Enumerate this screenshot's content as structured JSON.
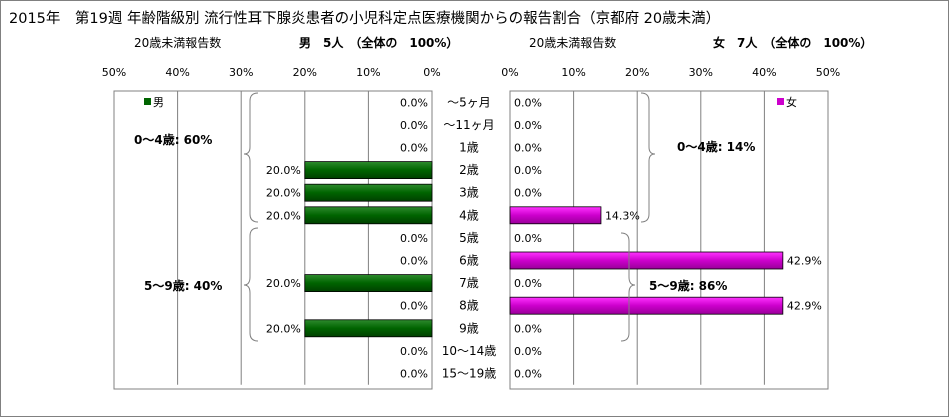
{
  "chart_data": {
    "type": "bar",
    "title": "2015年　第19週 年齢階級別 流行性耳下腺炎患者の小児科定点医療機関からの報告割合（京都府 20歳未満）",
    "categories": [
      "～5ヶ月",
      "～11ヶ月",
      "1歳",
      "2歳",
      "3歳",
      "4歳",
      "5歳",
      "6歳",
      "7歳",
      "8歳",
      "9歳",
      "10～14歳",
      "15～19歳"
    ],
    "xlim": [
      0,
      50
    ],
    "tick_labels": [
      "0%",
      "10%",
      "20%",
      "30%",
      "40%",
      "50%"
    ],
    "grid": true,
    "panels": {
      "male": {
        "header_left": "20歳未満報告数",
        "header_right": "男　5人　（全体の　100%）",
        "legend": "男",
        "legend_position": "top-left",
        "color": "#006400",
        "values": [
          0,
          0,
          0,
          20,
          20,
          20,
          0,
          0,
          20,
          0,
          20,
          0,
          0
        ],
        "data_labels": [
          "0.0%",
          "0.0%",
          "0.0%",
          "20.0%",
          "20.0%",
          "20.0%",
          "0.0%",
          "0.0%",
          "20.0%",
          "0.0%",
          "20.0%",
          "0.0%",
          "0.0%"
        ],
        "group_labels": [
          "0～4歳: 60%",
          "5～9歳: 40%"
        ]
      },
      "female": {
        "header_left": "20歳未満報告数",
        "header_right": "女　7人　（全体の　100%）",
        "legend": "女",
        "legend_position": "top-right",
        "color": "#cc00cc",
        "values": [
          0,
          0,
          0,
          0,
          0,
          14.3,
          0,
          42.9,
          0,
          42.9,
          0,
          0,
          0
        ],
        "data_labels": [
          "0.0%",
          "0.0%",
          "0.0%",
          "0.0%",
          "0.0%",
          "14.3%",
          "0.0%",
          "42.9%",
          "0.0%",
          "42.9%",
          "0.0%",
          "0.0%",
          "0.0%"
        ],
        "group_labels": [
          "0～4歳: 14%",
          "5～9歳: 86%"
        ]
      }
    }
  }
}
